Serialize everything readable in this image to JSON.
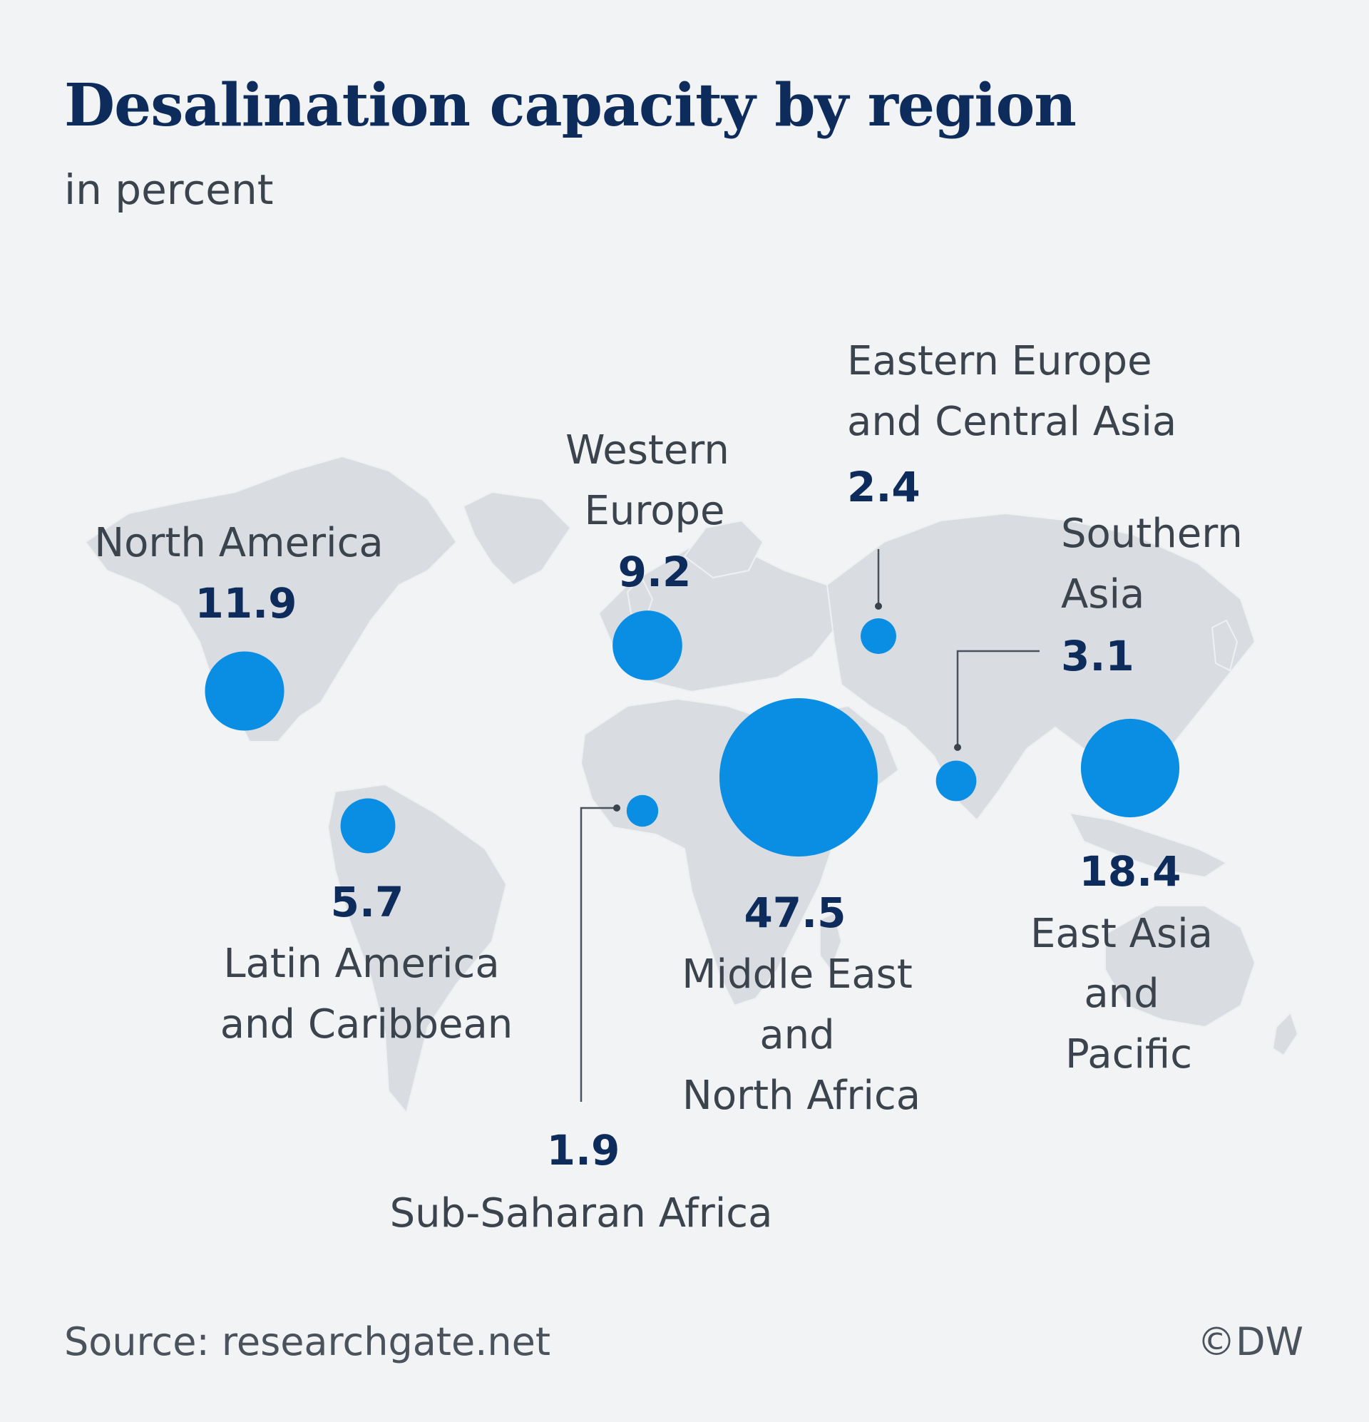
{
  "header": {
    "title": "Desalination capacity by region",
    "subtitle": "in percent"
  },
  "footer": {
    "source": "Source: researchgate.net",
    "copyright": "©DW"
  },
  "colors": {
    "background": "#f1f3f5",
    "land": "#d9dde2",
    "bubble": "#0a8ee3",
    "value_text": "#0d2c5c",
    "label_text": "#3b434d",
    "leader_line": "#4a525c"
  },
  "chart_data": {
    "type": "bubble-map",
    "unit": "percent",
    "regions": [
      {
        "id": "north-america",
        "name": "North America",
        "value": 11.9
      },
      {
        "id": "western-europe",
        "name": "Western Europe",
        "value": 9.2
      },
      {
        "id": "eastern-europe-central-asia",
        "name": "Eastern Europe and Central Asia",
        "value": 2.4
      },
      {
        "id": "southern-asia",
        "name": "Southern Asia",
        "value": 3.1
      },
      {
        "id": "east-asia-pacific",
        "name": "East Asia and Pacific",
        "value": 18.4
      },
      {
        "id": "middle-east-north-africa",
        "name": "Middle East and North Africa",
        "value": 47.5
      },
      {
        "id": "sub-saharan-africa",
        "name": "Sub-Saharan Africa",
        "value": 1.9
      },
      {
        "id": "latin-america-caribbean",
        "name": "Latin America and Caribbean",
        "value": 5.7
      }
    ]
  }
}
